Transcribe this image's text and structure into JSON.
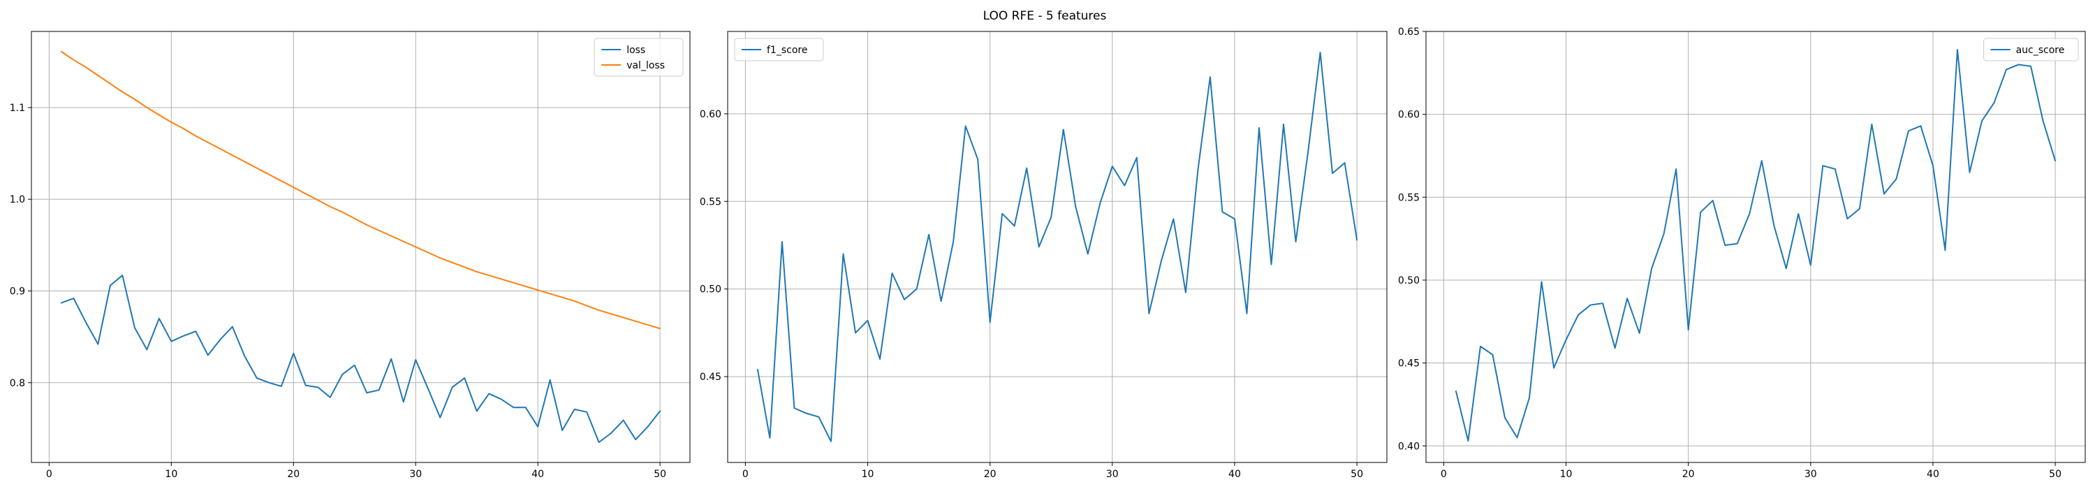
{
  "figure": {
    "suptitle": "LOO RFE - 5 features"
  },
  "chart_data": [
    {
      "type": "line",
      "title": "",
      "xlabel": "",
      "ylabel": "",
      "xlim": [
        -1.45,
        52.45
      ],
      "ylim": [
        0.713,
        1.183
      ],
      "xticks": [
        0,
        10,
        20,
        30,
        40,
        50
      ],
      "yticks": [
        0.8,
        0.9,
        1.0,
        1.1
      ],
      "ytick_labels": [
        "0.8",
        "0.9",
        "1.0",
        "1.1"
      ],
      "grid": true,
      "legend_position": "upper right",
      "x": [
        1,
        2,
        3,
        4,
        5,
        6,
        7,
        8,
        9,
        10,
        11,
        12,
        13,
        14,
        15,
        16,
        17,
        18,
        19,
        20,
        21,
        22,
        23,
        24,
        25,
        26,
        27,
        28,
        29,
        30,
        31,
        32,
        33,
        34,
        35,
        36,
        37,
        38,
        39,
        40,
        41,
        42,
        43,
        44,
        45,
        46,
        47,
        48,
        49,
        50
      ],
      "series": [
        {
          "name": "loss",
          "color": "#1f77b4",
          "values": [
            0.887,
            0.892,
            0.866,
            0.842,
            0.906,
            0.917,
            0.86,
            0.836,
            0.87,
            0.845,
            0.851,
            0.856,
            0.83,
            0.847,
            0.861,
            0.829,
            0.805,
            0.8,
            0.796,
            0.832,
            0.797,
            0.795,
            0.784,
            0.809,
            0.819,
            0.789,
            0.792,
            0.826,
            0.779,
            0.825,
            0.794,
            0.762,
            0.795,
            0.805,
            0.769,
            0.788,
            0.782,
            0.773,
            0.773,
            0.752,
            0.803,
            0.748,
            0.771,
            0.768,
            0.735,
            0.745,
            0.759,
            0.738,
            0.752,
            0.769
          ]
        },
        {
          "name": "val_loss",
          "color": "#ff7f0e",
          "values": [
            1.161,
            1.152,
            1.144,
            1.135,
            1.126,
            1.117,
            1.109,
            1.1,
            1.092,
            1.084,
            1.077,
            1.069,
            1.062,
            1.055,
            1.048,
            1.041,
            1.034,
            1.027,
            1.02,
            1.013,
            1.006,
            0.999,
            0.992,
            0.986,
            0.979,
            0.972,
            0.966,
            0.96,
            0.954,
            0.948,
            0.942,
            0.936,
            0.931,
            0.926,
            0.921,
            0.917,
            0.913,
            0.909,
            0.905,
            0.901,
            0.897,
            0.893,
            0.889,
            0.884,
            0.879,
            0.875,
            0.871,
            0.867,
            0.863,
            0.859
          ]
        }
      ]
    },
    {
      "type": "line",
      "title": "",
      "xlabel": "",
      "ylabel": "",
      "xlim": [
        -1.45,
        52.45
      ],
      "ylim": [
        0.401,
        0.647
      ],
      "xticks": [
        0,
        10,
        20,
        30,
        40,
        50
      ],
      "yticks": [
        0.45,
        0.5,
        0.55,
        0.6
      ],
      "ytick_labels": [
        "0.45",
        "0.50",
        "0.55",
        "0.60"
      ],
      "grid": true,
      "legend_position": "upper left",
      "x": [
        1,
        2,
        3,
        4,
        5,
        6,
        7,
        8,
        9,
        10,
        11,
        12,
        13,
        14,
        15,
        16,
        17,
        18,
        19,
        20,
        21,
        22,
        23,
        24,
        25,
        26,
        27,
        28,
        29,
        30,
        31,
        32,
        33,
        34,
        35,
        36,
        37,
        38,
        39,
        40,
        41,
        42,
        43,
        44,
        45,
        46,
        47,
        48,
        49,
        50
      ],
      "series": [
        {
          "name": "f1_score",
          "color": "#1f77b4",
          "values": [
            0.454,
            0.415,
            0.527,
            0.432,
            0.429,
            0.427,
            0.413,
            0.52,
            0.475,
            0.482,
            0.46,
            0.509,
            0.494,
            0.5,
            0.531,
            0.493,
            0.527,
            0.593,
            0.574,
            0.481,
            0.543,
            0.536,
            0.569,
            0.524,
            0.541,
            0.591,
            0.547,
            0.52,
            0.549,
            0.57,
            0.559,
            0.575,
            0.486,
            0.516,
            0.54,
            0.498,
            0.568,
            0.621,
            0.544,
            0.54,
            0.486,
            0.592,
            0.514,
            0.594,
            0.527,
            0.578,
            0.635,
            0.566,
            0.572,
            0.528
          ]
        }
      ]
    },
    {
      "type": "line",
      "title": "",
      "xlabel": "",
      "ylabel": "",
      "xlim": [
        -1.45,
        52.45
      ],
      "ylim": [
        0.39,
        0.65
      ],
      "xticks": [
        0,
        10,
        20,
        30,
        40,
        50
      ],
      "yticks": [
        0.4,
        0.45,
        0.5,
        0.55,
        0.6,
        0.65
      ],
      "ytick_labels": [
        "0.40",
        "0.45",
        "0.50",
        "0.55",
        "0.60",
        "0.65"
      ],
      "grid": true,
      "legend_position": "upper right",
      "x": [
        1,
        2,
        3,
        4,
        5,
        6,
        7,
        8,
        9,
        10,
        11,
        12,
        13,
        14,
        15,
        16,
        17,
        18,
        19,
        20,
        21,
        22,
        23,
        24,
        25,
        26,
        27,
        28,
        29,
        30,
        31,
        32,
        33,
        34,
        35,
        36,
        37,
        38,
        39,
        40,
        41,
        42,
        43,
        44,
        45,
        46,
        47,
        48,
        49,
        50
      ],
      "series": [
        {
          "name": "auc_score",
          "color": "#1f77b4",
          "values": [
            0.433,
            0.403,
            0.46,
            0.455,
            0.417,
            0.405,
            0.429,
            0.499,
            0.447,
            0.464,
            0.479,
            0.485,
            0.486,
            0.459,
            0.489,
            0.468,
            0.507,
            0.528,
            0.567,
            0.47,
            0.541,
            0.548,
            0.521,
            0.522,
            0.54,
            0.572,
            0.533,
            0.507,
            0.54,
            0.509,
            0.569,
            0.567,
            0.537,
            0.543,
            0.594,
            0.552,
            0.561,
            0.59,
            0.593,
            0.569,
            0.518,
            0.639,
            0.565,
            0.596,
            0.607,
            0.627,
            0.63,
            0.629,
            0.596,
            0.572
          ]
        }
      ]
    }
  ]
}
